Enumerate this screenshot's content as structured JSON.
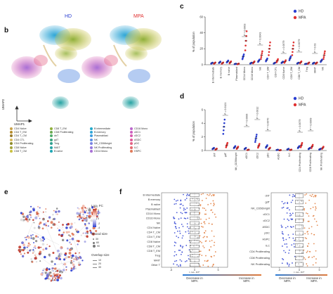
{
  "panels": {
    "b": "b",
    "c": "c",
    "d": "d",
    "e": "e",
    "f": "f"
  },
  "b": {
    "hd_label": "HD",
    "mpa_label": "MPA",
    "axis_y": "UMAP2",
    "axis_x": "UMAP1",
    "legend": [
      {
        "label": "CD4 Naïve",
        "color": "#c8a24a"
      },
      {
        "label": "CD4 T_EM",
        "color": "#b58b2b"
      },
      {
        "label": "CD4 T_CM",
        "color": "#9a7b2a"
      },
      {
        "label": "CD4 CTL",
        "color": "#d6b85a"
      },
      {
        "label": "CD4 Proliferating",
        "color": "#8c8a2a"
      },
      {
        "label": "CD8 Naïve",
        "color": "#a3a33a"
      },
      {
        "label": "CD8 T_CM",
        "color": "#c9c03f"
      },
      {
        "label": "CD8 T_EM",
        "color": "#8fb03a"
      },
      {
        "label": "CD8 Proliferating",
        "color": "#6aa84f"
      },
      {
        "label": "dnT",
        "color": "#4fae6b"
      },
      {
        "label": "gdT",
        "color": "#3aa57d"
      },
      {
        "label": "Treg",
        "color": "#2f9e8f"
      },
      {
        "label": "MAIT",
        "color": "#27a3a3"
      },
      {
        "label": "B naïve",
        "color": "#1fa7b5"
      },
      {
        "label": "B intermediate",
        "color": "#22a9c9"
      },
      {
        "label": "B memory",
        "color": "#2fa6d6"
      },
      {
        "label": "Plasmablast",
        "color": "#3e9ee0"
      },
      {
        "label": "NK",
        "color": "#5b8fe3"
      },
      {
        "label": "NK_CD56bright",
        "color": "#7a82e3"
      },
      {
        "label": "NK Proliferating",
        "color": "#9478de"
      },
      {
        "label": "CD14 Mono",
        "color": "#a870d6"
      },
      {
        "label": "CD16 Mono",
        "color": "#bb67cc"
      },
      {
        "label": "cDC1",
        "color": "#cc5fbf"
      },
      {
        "label": "cDC2",
        "color": "#d85aae"
      },
      {
        "label": "ASDC",
        "color": "#e05a9a"
      },
      {
        "label": "pDC",
        "color": "#e36284"
      },
      {
        "label": "ILC",
        "color": "#e46a6e"
      },
      {
        "label": "HSPC",
        "color": "#e07a5a"
      }
    ]
  },
  "c": {
    "ylabel": "% of population",
    "yticks": [
      "0",
      "20",
      "40",
      "60"
    ],
    "legend": [
      {
        "label": "HD",
        "color": "#2b3fd1"
      },
      {
        "label": "MPA",
        "color": "#e03030"
      }
    ],
    "pvals": [
      "P = 0.0003",
      "P = 0.0043",
      "P = 0.0079",
      "P = 0.0079",
      "P = 0.03"
    ],
    "chart_data": {
      "type": "scatter",
      "categories": [
        "B intermediate",
        "B memory",
        "B naïve",
        "Plasmablast",
        "CD14 Mono",
        "CD16 Mono",
        "NK",
        "CD4 T_EM",
        "CD4 CTL",
        "CD8 Naïve",
        "CD8 T_EM",
        "CD8 T_CM",
        "Treg",
        "MAIT",
        "NK"
      ],
      "ylim": [
        0,
        60
      ],
      "series": [
        {
          "name": "HD",
          "values": [
            2,
            3,
            4,
            1,
            10,
            2,
            5,
            6,
            2,
            3,
            8,
            2,
            1,
            2,
            5
          ]
        },
        {
          "name": "MPA",
          "values": [
            2,
            2,
            3,
            1,
            30,
            3,
            12,
            20,
            5,
            4,
            20,
            3,
            2,
            2,
            12
          ]
        }
      ]
    }
  },
  "d": {
    "ylabel": "% of population",
    "yticks": [
      "0",
      "2",
      "4",
      "6"
    ],
    "legend": [
      {
        "label": "HD",
        "color": "#2b3fd1"
      },
      {
        "label": "MPA",
        "color": "#e03030"
      }
    ],
    "pvals": [
      "P = 0.0121",
      "P = 0.0006",
      "P = 0.0012",
      "P = 0.0070",
      "P = 0.0079",
      "P = 0.0009"
    ],
    "chart_data": {
      "type": "scatter",
      "categories": [
        "dnT",
        "gdT",
        "NK_CD56bright",
        "cDC1",
        "cDC2",
        "pDC",
        "ASDC",
        "ILC",
        "CD4 Proliferating",
        "CD8 Proliferating",
        "NK Proliferating"
      ],
      "ylim": [
        0,
        6
      ],
      "series": [
        {
          "name": "HD",
          "values": [
            0.3,
            3.5,
            0.5,
            0.3,
            1.8,
            0.6,
            0.1,
            0.2,
            0.5,
            0.3,
            0.2
          ]
        },
        {
          "name": "MPA",
          "values": [
            0.2,
            0.8,
            0.4,
            0.1,
            0.7,
            0.3,
            0.05,
            0.1,
            0.8,
            0.6,
            0.4
          ]
        }
      ]
    }
  },
  "e": {
    "log2fc_label": "Log₂ FC",
    "fc_ticks": [
      "4",
      "2",
      "0",
      "-2",
      "-4"
    ],
    "nhood_title": "Nhood size",
    "nhood_ticks": [
      "30",
      "60",
      "90"
    ],
    "overlap_title": "Overlap size",
    "overlap_ticks": [
      "10",
      "20",
      "30"
    ]
  },
  "f": {
    "left_rows": [
      "B intermediate",
      "B memory",
      "B naïve",
      "Plasmablast",
      "CD14 Mono",
      "CD16 Mono",
      "NK",
      "CD4 Naïve",
      "CD4 T_CM",
      "CD4 T_EM",
      "CD8 Naïve",
      "CD8 T_CM",
      "CD8 T_EM",
      "Treg",
      "MAIT",
      "Other T"
    ],
    "right_rows": [
      "dnT",
      "gdT",
      "NK_CD56bright",
      "cDC1",
      "cDC2",
      "ASDC",
      "pDC",
      "HSPC",
      "ILC",
      "CD4 Proliferating",
      "CD8 Proliferating",
      "NK Proliferating"
    ],
    "xlabel": "Log₂ FC",
    "left_ticks": [
      "-5",
      "0",
      "5"
    ],
    "right_ticks": [
      "-5",
      "0",
      "5"
    ],
    "decrease": "Decrease in MPA",
    "increase": "Increase in MPA"
  }
}
